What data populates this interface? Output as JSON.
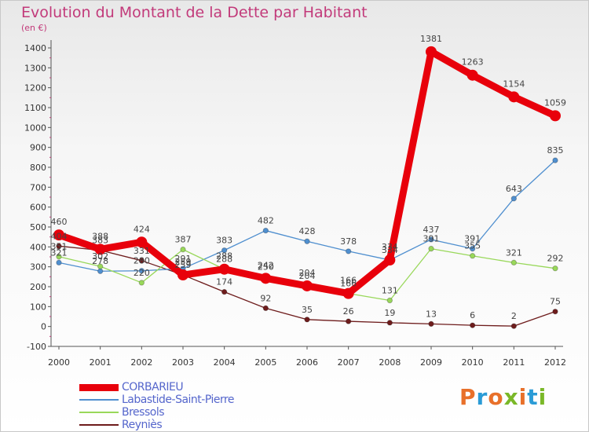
{
  "title": "Evolution du Montant de la Dette par Habitant",
  "subtitle": "(en €)",
  "logo": {
    "text": "Proxiti",
    "colors": [
      "#e8702a",
      "#2a9bd6",
      "#e8702a",
      "#7ab828",
      "#e8702a",
      "#2a9bd6",
      "#7ab828"
    ]
  },
  "chart_data": {
    "type": "line",
    "title": "Evolution du Montant de la Dette par Habitant",
    "ylabel": "(en €)",
    "x": [
      "2000",
      "2001",
      "2002",
      "2003",
      "2004",
      "2005",
      "2006",
      "2007",
      "2008",
      "2009",
      "2010",
      "2011",
      "2012"
    ],
    "ylim": [
      -100,
      1400
    ],
    "yticks": [
      -100,
      0,
      100,
      200,
      300,
      400,
      500,
      600,
      700,
      800,
      900,
      1000,
      1100,
      1200,
      1300,
      1400
    ],
    "grid": false,
    "legend_position": "bottom-left",
    "series": [
      {
        "name": "CORBARIEU",
        "color": "#e8000b",
        "values": [
          460,
          388,
          424,
          259,
          288,
          242,
          204,
          166,
          334,
          1381,
          1263,
          1154,
          1059
        ]
      },
      {
        "name": "Labastide-Saint-Pierre",
        "color": "#4f8fcf",
        "values": [
          321,
          278,
          280,
          291,
          383,
          482,
          428,
          378,
          334,
          437,
          391,
          643,
          835
        ]
      },
      {
        "name": "Bressols",
        "color": "#99d85a",
        "values": [
          351,
          302,
          220,
          387,
          288,
          250,
          204,
          166,
          131,
          391,
          355,
          321,
          292
        ]
      },
      {
        "name": "Reyniès",
        "color": "#6e1c1c",
        "values": [
          404,
          383,
          331,
          259,
          174,
          92,
          35,
          26,
          19,
          13,
          6,
          2,
          75
        ]
      }
    ]
  }
}
